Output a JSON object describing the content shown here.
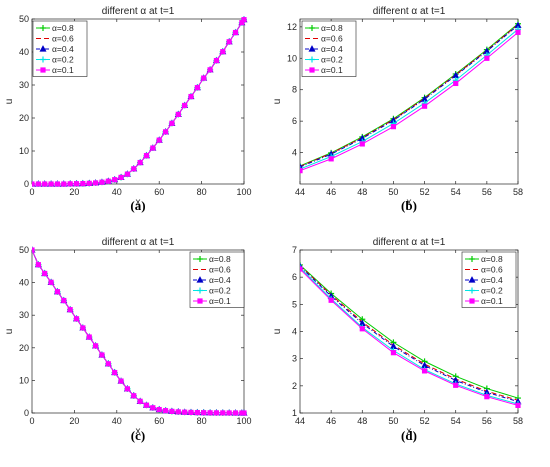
{
  "panels": [
    {
      "id": "a",
      "caption": "(a)",
      "chart_data": {
        "type": "line",
        "title": "different α at  t=1",
        "xlabel": "x",
        "ylabel": "u",
        "xlim": [
          0,
          100
        ],
        "ylim": [
          0,
          50
        ],
        "xticks": [
          0,
          20,
          40,
          60,
          80,
          100
        ],
        "yticks": [
          0,
          10,
          20,
          30,
          40,
          50
        ],
        "grid": false,
        "legend_position": "top-left",
        "x": [
          0,
          3,
          6,
          9,
          12,
          15,
          18,
          21,
          24,
          27,
          30,
          33,
          36,
          39,
          42,
          45,
          48,
          51,
          54,
          57,
          60,
          63,
          66,
          69,
          72,
          75,
          78,
          81,
          84,
          87,
          90,
          93,
          96,
          99,
          100
        ],
        "series": [
          {
            "name": "α=0.8",
            "values": [
              0,
              0,
              0,
              0,
              0,
              0,
              0.05,
              0.08,
              0.12,
              0.2,
              0.32,
              0.55,
              0.85,
              1.3,
              2,
              3,
              4.6,
              6.5,
              8.6,
              10.9,
              13.3,
              15.8,
              18.4,
              21.1,
              23.8,
              26.5,
              29.2,
              32.1,
              34.6,
              37.4,
              40.1,
              43.1,
              45.9,
              48.9,
              49.8
            ]
          },
          {
            "name": "α=0.6",
            "values": [
              0,
              0,
              0,
              0,
              0,
              0,
              0.05,
              0.08,
              0.12,
              0.2,
              0.32,
              0.55,
              0.85,
              1.3,
              2,
              3,
              4.6,
              6.5,
              8.6,
              10.9,
              13.3,
              15.8,
              18.4,
              21.1,
              23.8,
              26.5,
              29.2,
              32.1,
              34.6,
              37.4,
              40.1,
              43.1,
              45.9,
              48.9,
              49.8
            ]
          },
          {
            "name": "α=0.4",
            "values": [
              0,
              0,
              0,
              0,
              0,
              0,
              0.05,
              0.08,
              0.12,
              0.2,
              0.32,
              0.55,
              0.85,
              1.3,
              2,
              3,
              4.6,
              6.5,
              8.6,
              10.9,
              13.3,
              15.8,
              18.4,
              21.1,
              23.8,
              26.5,
              29.2,
              32.1,
              34.6,
              37.4,
              40.1,
              43.1,
              45.9,
              48.9,
              49.8
            ]
          },
          {
            "name": "α=0.2",
            "values": [
              0,
              0,
              0,
              0,
              0,
              0,
              0.05,
              0.08,
              0.12,
              0.2,
              0.32,
              0.55,
              0.85,
              1.3,
              2,
              3,
              4.6,
              6.5,
              8.6,
              10.9,
              13.3,
              15.8,
              18.4,
              21.1,
              23.8,
              26.5,
              29.2,
              32.1,
              34.6,
              37.4,
              40.1,
              43.1,
              45.9,
              48.9,
              49.8
            ]
          },
          {
            "name": "α=0.1",
            "values": [
              0,
              0,
              0,
              0,
              0,
              0,
              0.05,
              0.08,
              0.12,
              0.2,
              0.32,
              0.55,
              0.85,
              1.3,
              2,
              3,
              4.6,
              6.5,
              8.6,
              10.9,
              13.3,
              15.8,
              18.4,
              21.1,
              23.8,
              26.5,
              29.2,
              32.1,
              34.6,
              37.4,
              40.1,
              43.1,
              45.9,
              48.9,
              49.8
            ]
          }
        ]
      }
    },
    {
      "id": "b",
      "caption": "(b)",
      "chart_data": {
        "type": "line",
        "title": "different α at t=1",
        "xlabel": "x",
        "ylabel": "u",
        "xlim": [
          44,
          58
        ],
        "ylim": [
          2,
          12.5
        ],
        "xticks": [
          44,
          46,
          48,
          50,
          52,
          54,
          56,
          58
        ],
        "yticks": [
          4,
          6,
          8,
          10,
          12
        ],
        "grid": false,
        "legend_position": "top-left",
        "x": [
          44,
          46,
          48,
          50,
          52,
          54,
          56,
          58
        ],
        "series": [
          {
            "name": "α=0.8",
            "values": [
              3.15,
              3.98,
              5.0,
              6.15,
              7.5,
              9.0,
              10.55,
              12.2
            ]
          },
          {
            "name": "α=0.6",
            "values": [
              3.12,
              3.95,
              4.95,
              6.1,
              7.45,
              8.95,
              10.5,
              12.15
            ]
          },
          {
            "name": "α=0.4",
            "values": [
              3.08,
              3.9,
              4.9,
              6.05,
              7.4,
              8.9,
              10.45,
              12.1
            ]
          },
          {
            "name": "α=0.2",
            "values": [
              2.95,
              3.75,
              4.7,
              5.85,
              7.15,
              8.6,
              10.2,
              11.85
            ]
          },
          {
            "name": "α=0.1",
            "values": [
              2.85,
              3.6,
              4.55,
              5.65,
              6.95,
              8.4,
              10.0,
              11.65
            ]
          }
        ]
      }
    },
    {
      "id": "c",
      "caption": "(c)",
      "chart_data": {
        "type": "line",
        "title": "different α at t=1",
        "xlabel": "x",
        "ylabel": "u",
        "xlim": [
          0,
          100
        ],
        "ylim": [
          0,
          50
        ],
        "xticks": [
          0,
          20,
          40,
          60,
          80,
          100
        ],
        "yticks": [
          0,
          10,
          20,
          30,
          40,
          50
        ],
        "grid": false,
        "legend_position": "top-right",
        "x": [
          0,
          3,
          6,
          9,
          12,
          15,
          18,
          21,
          24,
          27,
          30,
          33,
          36,
          39,
          42,
          45,
          48,
          51,
          54,
          57,
          60,
          63,
          66,
          69,
          72,
          75,
          78,
          81,
          84,
          87,
          90,
          93,
          96,
          99,
          100
        ],
        "series": [
          {
            "name": "α=0.8",
            "values": [
              50,
              45.5,
              42.8,
              40.1,
              37.2,
              34.5,
              31.7,
              28.9,
              26.1,
              23.3,
              20.6,
              17.8,
              15.1,
              12.4,
              9.8,
              7.4,
              5.3,
              3.6,
              2.4,
              1.6,
              1.05,
              0.72,
              0.5,
              0.35,
              0.25,
              0.18,
              0.13,
              0.09,
              0.06,
              0.04,
              0.03,
              0.02,
              0.01,
              0.01,
              0
            ]
          },
          {
            "name": "α=0.6",
            "values": [
              50,
              45.5,
              42.8,
              40.1,
              37.2,
              34.5,
              31.7,
              28.9,
              26.1,
              23.3,
              20.6,
              17.8,
              15.1,
              12.4,
              9.8,
              7.4,
              5.3,
              3.6,
              2.4,
              1.6,
              1.05,
              0.72,
              0.5,
              0.35,
              0.25,
              0.18,
              0.13,
              0.09,
              0.06,
              0.04,
              0.03,
              0.02,
              0.01,
              0.01,
              0
            ]
          },
          {
            "name": "α=0.4",
            "values": [
              50,
              45.5,
              42.8,
              40.1,
              37.2,
              34.5,
              31.7,
              28.9,
              26.1,
              23.3,
              20.6,
              17.8,
              15.1,
              12.4,
              9.8,
              7.4,
              5.3,
              3.6,
              2.4,
              1.6,
              1.05,
              0.72,
              0.5,
              0.35,
              0.25,
              0.18,
              0.13,
              0.09,
              0.06,
              0.04,
              0.03,
              0.02,
              0.01,
              0.01,
              0
            ]
          },
          {
            "name": "α=0.2",
            "values": [
              50,
              45.5,
              42.8,
              40.1,
              37.2,
              34.5,
              31.7,
              28.9,
              26.1,
              23.3,
              20.6,
              17.8,
              15.1,
              12.4,
              9.8,
              7.4,
              5.3,
              3.6,
              2.4,
              1.6,
              1.05,
              0.72,
              0.5,
              0.35,
              0.25,
              0.18,
              0.13,
              0.09,
              0.06,
              0.04,
              0.03,
              0.02,
              0.01,
              0.01,
              0
            ]
          },
          {
            "name": "α=0.1",
            "values": [
              50,
              45.5,
              42.8,
              40.1,
              37.2,
              34.5,
              31.7,
              28.9,
              26.1,
              23.3,
              20.6,
              17.8,
              15.1,
              12.4,
              9.8,
              7.4,
              5.3,
              3.6,
              2.4,
              1.6,
              1.05,
              0.72,
              0.5,
              0.35,
              0.25,
              0.18,
              0.13,
              0.09,
              0.06,
              0.04,
              0.03,
              0.02,
              0.01,
              0.01,
              0
            ]
          }
        ]
      }
    },
    {
      "id": "d",
      "caption": "(d)",
      "chart_data": {
        "type": "line",
        "title": "different α at t=1",
        "xlabel": "x",
        "ylabel": "u",
        "xlim": [
          44,
          58
        ],
        "ylim": [
          1,
          7
        ],
        "xticks": [
          44,
          46,
          48,
          50,
          52,
          54,
          56,
          58
        ],
        "yticks": [
          1,
          2,
          3,
          4,
          5,
          6,
          7
        ],
        "grid": false,
        "legend_position": "top-right",
        "x": [
          44,
          46,
          48,
          50,
          52,
          54,
          56,
          58
        ],
        "series": [
          {
            "name": "α=0.8",
            "values": [
              6.45,
              5.4,
              4.45,
              3.6,
              2.9,
              2.35,
              1.9,
              1.55
            ]
          },
          {
            "name": "α=0.6",
            "values": [
              6.42,
              5.35,
              4.35,
              3.5,
              2.8,
              2.25,
              1.8,
              1.47
            ]
          },
          {
            "name": "α=0.4",
            "values": [
              6.4,
              5.3,
              4.3,
              3.45,
              2.75,
              2.2,
              1.76,
              1.42
            ]
          },
          {
            "name": "α=0.2",
            "values": [
              6.35,
              5.2,
              4.15,
              3.3,
              2.6,
              2.07,
              1.65,
              1.33
            ]
          },
          {
            "name": "α=0.1",
            "values": [
              6.3,
              5.15,
              4.1,
              3.22,
              2.55,
              2.02,
              1.6,
              1.28
            ]
          }
        ]
      }
    }
  ],
  "series_styles": [
    {
      "color": "#00cc00",
      "dash": "",
      "marker": "plus"
    },
    {
      "color": "#e00000",
      "dash": "5,3",
      "marker": "none"
    },
    {
      "color": "#0000c8",
      "dash": "4,2,1,2",
      "marker": "triangle"
    },
    {
      "color": "#00e5e5",
      "dash": "",
      "marker": "plus"
    },
    {
      "color": "#ff00ff",
      "dash": "",
      "marker": "square"
    }
  ]
}
